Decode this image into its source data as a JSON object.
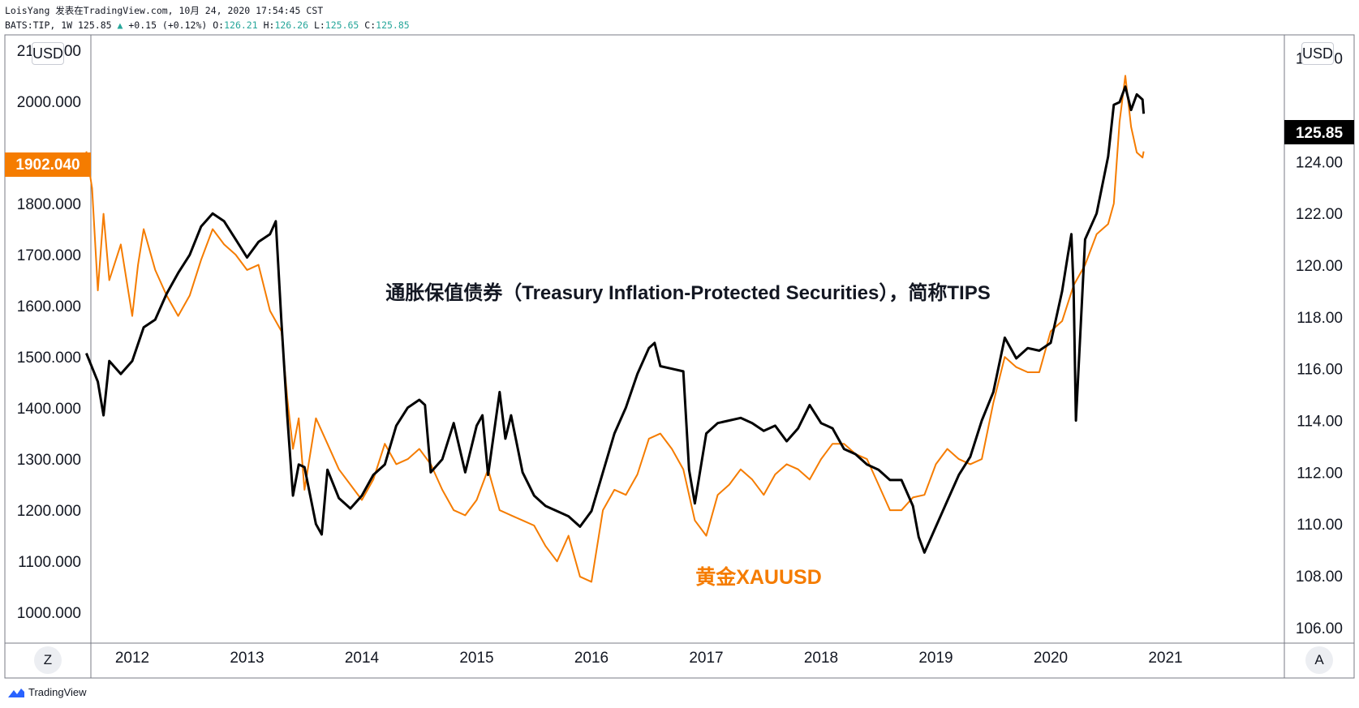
{
  "header": {
    "line1": "LoisYang 发表在TradingView.com, 10月 24, 2020 17:54:45 CST",
    "symbol": "BATS:TIP, 1W 125.85",
    "change": "+0.15 (+0.12%)",
    "o_label": "O:",
    "o_value": "126.21",
    "h_label": "H:",
    "h_value": "126.26",
    "l_label": "L:",
    "l_value": "125.65",
    "c_label": "C:",
    "c_value": "125.85"
  },
  "left_currency": "USD",
  "right_currency": "USD",
  "zoom_button": "Z",
  "auto_button": "A",
  "brand": "TradingView",
  "colors": {
    "tips": "#000000",
    "gold": "#f57c00",
    "frame": "#787b86",
    "teal": "#26a69a"
  },
  "chart_data": {
    "type": "line",
    "title": "通胀保值债券（Treasury Inflation-Protected Securities），简称TIPS",
    "gold_label": "黄金XAUUSD",
    "x_ticks": [
      "2012",
      "2013",
      "2014",
      "2015",
      "2016",
      "2017",
      "2018",
      "2019",
      "2020",
      "2021"
    ],
    "left_axis": {
      "currency": "USD",
      "ticks": [
        "2100.000",
        "2000.000",
        "1800.000",
        "1700.000",
        "1600.000",
        "1500.000",
        "1400.000",
        "1300.000",
        "1200.000",
        "1100.000",
        "1000.000"
      ],
      "ylim": [
        940,
        2130
      ]
    },
    "right_axis": {
      "currency": "USD",
      "ticks": [
        "128.00",
        "124.00",
        "122.00",
        "120.00",
        "118.00",
        "116.00",
        "114.00",
        "112.00",
        "110.00",
        "108.00",
        "106.00"
      ],
      "ylim": [
        105.4,
        128.9
      ]
    },
    "last_value_left": "1902.040",
    "last_value_right": "125.85",
    "series": [
      {
        "name": "TIPS",
        "axis": "right",
        "x": [
          2011.6,
          2011.7,
          2011.75,
          2011.8,
          2011.9,
          2012.0,
          2012.1,
          2012.2,
          2012.3,
          2012.4,
          2012.5,
          2012.6,
          2012.7,
          2012.8,
          2012.9,
          2013.0,
          2013.1,
          2013.2,
          2013.25,
          2013.3,
          2013.35,
          2013.4,
          2013.45,
          2013.5,
          2013.6,
          2013.65,
          2013.7,
          2013.8,
          2013.9,
          2014.0,
          2014.1,
          2014.2,
          2014.3,
          2014.4,
          2014.5,
          2014.55,
          2014.6,
          2014.7,
          2014.8,
          2014.9,
          2015.0,
          2015.05,
          2015.1,
          2015.2,
          2015.25,
          2015.3,
          2015.4,
          2015.5,
          2015.6,
          2015.7,
          2015.8,
          2015.9,
          2016.0,
          2016.1,
          2016.2,
          2016.3,
          2016.4,
          2016.5,
          2016.55,
          2016.6,
          2016.7,
          2016.8,
          2016.85,
          2016.9,
          2017.0,
          2017.1,
          2017.2,
          2017.3,
          2017.4,
          2017.5,
          2017.6,
          2017.7,
          2017.8,
          2017.9,
          2018.0,
          2018.1,
          2018.2,
          2018.3,
          2018.4,
          2018.5,
          2018.6,
          2018.7,
          2018.8,
          2018.85,
          2018.9,
          2019.0,
          2019.1,
          2019.2,
          2019.3,
          2019.4,
          2019.5,
          2019.6,
          2019.7,
          2019.8,
          2019.9,
          2020.0,
          2020.1,
          2020.15,
          2020.18,
          2020.2,
          2020.22,
          2020.3,
          2020.4,
          2020.5,
          2020.55,
          2020.6,
          2020.65,
          2020.7,
          2020.75,
          2020.8,
          2020.81
        ],
        "values": [
          116.6,
          115.5,
          114.2,
          116.3,
          115.8,
          116.3,
          117.6,
          117.9,
          118.9,
          119.7,
          120.4,
          121.5,
          122.0,
          121.7,
          121.0,
          120.3,
          120.9,
          121.2,
          121.7,
          117.8,
          114.2,
          111.1,
          112.3,
          112.2,
          110.0,
          109.6,
          112.1,
          111.0,
          110.6,
          111.1,
          111.9,
          112.3,
          113.8,
          114.5,
          114.8,
          114.6,
          112.0,
          112.5,
          113.9,
          112.0,
          113.8,
          114.2,
          111.9,
          115.1,
          113.3,
          114.2,
          112.0,
          111.1,
          110.7,
          110.5,
          110.3,
          109.9,
          110.5,
          112.0,
          113.5,
          114.5,
          115.8,
          116.8,
          117.0,
          116.1,
          116.0,
          115.9,
          112.1,
          110.8,
          113.5,
          113.9,
          114.0,
          114.1,
          113.9,
          113.6,
          113.8,
          113.2,
          113.7,
          114.6,
          113.9,
          113.7,
          112.9,
          112.7,
          112.3,
          112.1,
          111.7,
          111.7,
          110.7,
          109.5,
          108.9,
          109.9,
          110.9,
          111.9,
          112.6,
          114.0,
          115.1,
          117.2,
          116.4,
          116.8,
          116.7,
          117.0,
          119.0,
          120.4,
          121.2,
          119.0,
          114.0,
          121.0,
          122.0,
          124.2,
          126.2,
          126.3,
          126.9,
          126.0,
          126.6,
          126.4,
          125.85
        ]
      },
      {
        "name": "黄金XAUUSD",
        "axis": "left",
        "x": [
          2011.6,
          2011.65,
          2011.7,
          2011.75,
          2011.8,
          2011.9,
          2012.0,
          2012.05,
          2012.1,
          2012.2,
          2012.3,
          2012.4,
          2012.5,
          2012.6,
          2012.7,
          2012.8,
          2012.9,
          2013.0,
          2013.1,
          2013.2,
          2013.3,
          2013.35,
          2013.4,
          2013.45,
          2013.5,
          2013.6,
          2013.7,
          2013.8,
          2013.9,
          2014.0,
          2014.1,
          2014.2,
          2014.3,
          2014.4,
          2014.5,
          2014.6,
          2014.7,
          2014.8,
          2014.9,
          2015.0,
          2015.1,
          2015.2,
          2015.3,
          2015.4,
          2015.5,
          2015.6,
          2015.7,
          2015.8,
          2015.9,
          2016.0,
          2016.1,
          2016.2,
          2016.3,
          2016.4,
          2016.5,
          2016.6,
          2016.7,
          2016.8,
          2016.9,
          2017.0,
          2017.1,
          2017.2,
          2017.3,
          2017.4,
          2017.5,
          2017.6,
          2017.7,
          2017.8,
          2017.9,
          2018.0,
          2018.1,
          2018.2,
          2018.3,
          2018.4,
          2018.5,
          2018.6,
          2018.7,
          2018.8,
          2018.9,
          2019.0,
          2019.1,
          2019.2,
          2019.3,
          2019.4,
          2019.5,
          2019.6,
          2019.7,
          2019.8,
          2019.9,
          2020.0,
          2020.1,
          2020.2,
          2020.3,
          2020.4,
          2020.5,
          2020.55,
          2020.6,
          2020.65,
          2020.7,
          2020.75,
          2020.8,
          2020.81
        ],
        "values": [
          1902.0,
          1830.0,
          1630.0,
          1780.0,
          1650.0,
          1720.0,
          1580.0,
          1680.0,
          1750.0,
          1670.0,
          1620.0,
          1580.0,
          1620.0,
          1690.0,
          1750.0,
          1720.0,
          1700.0,
          1670.0,
          1680.0,
          1590.0,
          1550.0,
          1420.0,
          1320.0,
          1380.0,
          1240.0,
          1380.0,
          1330.0,
          1280.0,
          1250.0,
          1220.0,
          1260.0,
          1330.0,
          1290.0,
          1300.0,
          1320.0,
          1290.0,
          1240.0,
          1200.0,
          1190.0,
          1220.0,
          1280.0,
          1200.0,
          1190.0,
          1180.0,
          1170.0,
          1130.0,
          1100.0,
          1150.0,
          1070.0,
          1060.0,
          1200.0,
          1240.0,
          1230.0,
          1270.0,
          1340.0,
          1350.0,
          1320.0,
          1280.0,
          1180.0,
          1150.0,
          1230.0,
          1250.0,
          1280.0,
          1260.0,
          1230.0,
          1270.0,
          1290.0,
          1280.0,
          1260.0,
          1300.0,
          1330.0,
          1330.0,
          1310.0,
          1300.0,
          1250.0,
          1200.0,
          1200.0,
          1225.0,
          1230.0,
          1290.0,
          1320.0,
          1300.0,
          1290.0,
          1300.0,
          1410.0,
          1500.0,
          1480.0,
          1470.0,
          1470.0,
          1550.0,
          1570.0,
          1640.0,
          1680.0,
          1740.0,
          1760.0,
          1800.0,
          1960.0,
          2050.0,
          1950.0,
          1900.0,
          1890.0,
          1902.0
        ]
      }
    ]
  }
}
